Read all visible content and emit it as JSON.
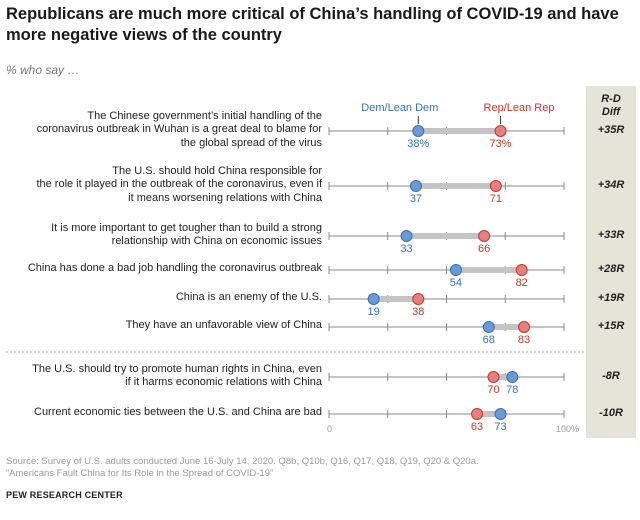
{
  "title": "Republicans are much more critical of China’s handling of COVID-19 and have more negative views of the country",
  "subtitle": "% who say …",
  "diff_header": [
    "R-D",
    "Diff"
  ],
  "source": {
    "line1": "Source: Survey of U.S. adults conducted June 16-July 14, 2020. Q8b, Q10b, Q16, Q17, Q18, Q19, Q20 & Q20a.",
    "line2": "“Americans Fault China for Its Role in the Spread of COVID-19”",
    "org": "PEW RESEARCH CENTER"
  },
  "colors": {
    "dem": "#6a99d4",
    "dem_stroke": "#3a6fb5",
    "rep": "#e58080",
    "rep_stroke": "#c0392b",
    "connector": "#c4c4c4",
    "axis": "#888888"
  },
  "chart_data": {
    "type": "dot",
    "title": "Republicans are much more critical of China’s handling of COVID-19 and have more negative views of the country",
    "subtitle": "% who say …",
    "xlim": [
      0,
      100
    ],
    "axis_labels": {
      "min": "0",
      "max": "100%"
    },
    "series": [
      {
        "name": "Dem/Lean Dem",
        "key": "dem"
      },
      {
        "name": "Rep/Lean Rep",
        "key": "rep"
      }
    ],
    "rows": [
      {
        "label": [
          "The Chinese government’s initial handling of the",
          "coronavirus outbreak in Wuhan is a great deal to blame for",
          "the global spread of the virus"
        ],
        "dem": 38,
        "rep": 73,
        "dem_text": "38%",
        "rep_text": "73%",
        "diff": "+35R"
      },
      {
        "label": [
          "The U.S. should hold China responsible for",
          "the role it played in the outbreak of the coronavirus, even if",
          "it means worsening relations with China"
        ],
        "dem": 37,
        "rep": 71,
        "dem_text": "37",
        "rep_text": "71",
        "diff": "+34R"
      },
      {
        "label": [
          "It is more important to get tougher than to build a strong",
          "relationship with China on economic issues"
        ],
        "dem": 33,
        "rep": 66,
        "dem_text": "33",
        "rep_text": "66",
        "diff": "+33R"
      },
      {
        "label": [
          "China has done a bad job handling the coronavirus outbreak"
        ],
        "dem": 54,
        "rep": 82,
        "dem_text": "54",
        "rep_text": "82",
        "diff": "+28R"
      },
      {
        "label": [
          "China is an enemy of the U.S."
        ],
        "dem": 19,
        "rep": 38,
        "dem_text": "19",
        "rep_text": "38",
        "diff": "+19R"
      },
      {
        "label": [
          "They have an unfavorable view of China"
        ],
        "dem": 68,
        "rep": 83,
        "dem_text": "68",
        "rep_text": "83",
        "diff": "+15R"
      },
      {
        "label": [
          "The U.S. should try to promote human rights in China, even",
          "if it harms economic relations with China"
        ],
        "dem": 78,
        "rep": 70,
        "dem_text": "78",
        "rep_text": "70",
        "diff": "-8R"
      },
      {
        "label": [
          "Current economic ties between the U.S. and China are bad"
        ],
        "dem": 73,
        "rep": 63,
        "dem_text": "73",
        "rep_text": "63",
        "diff": "-10R"
      }
    ]
  }
}
